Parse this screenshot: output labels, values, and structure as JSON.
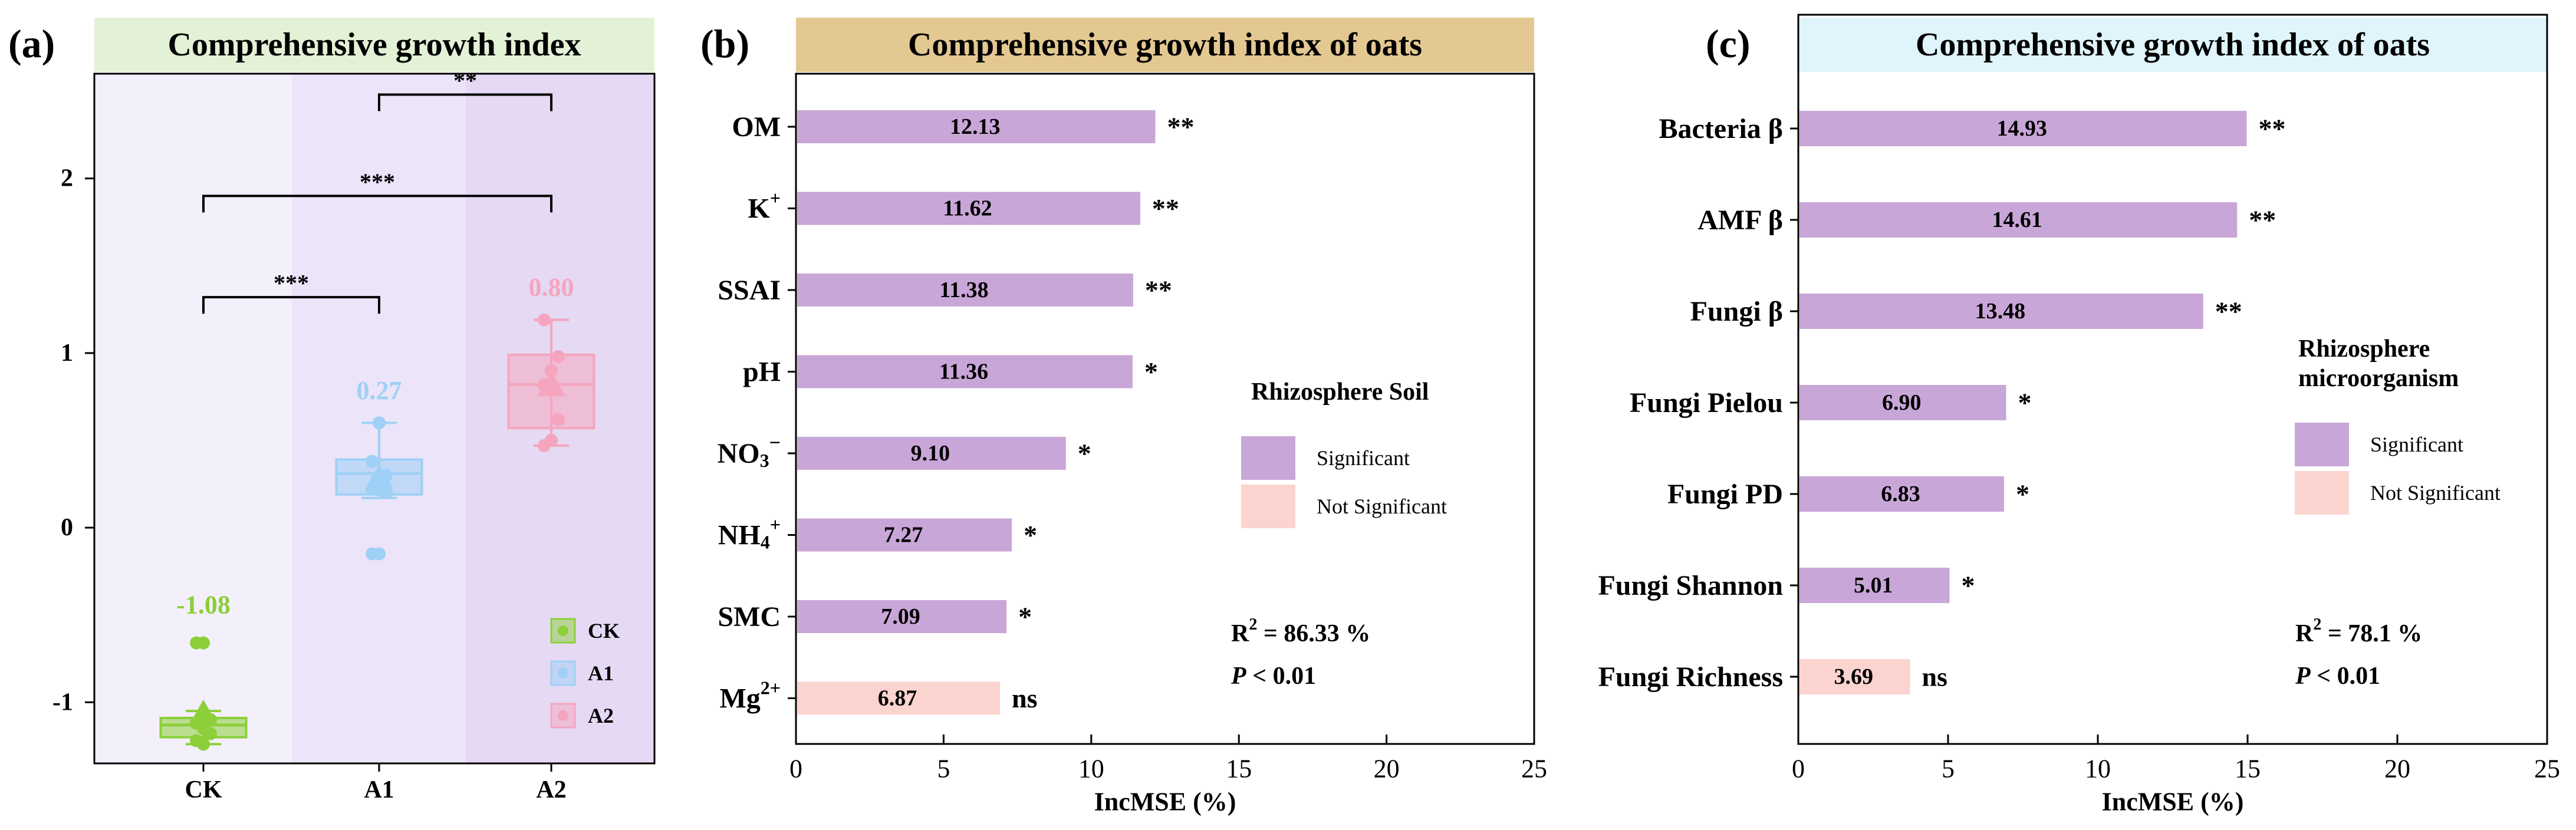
{
  "chart_data": [
    {
      "panel": "(a)",
      "type": "box",
      "title": "Comprehensive growth index",
      "title_bg": "#e3f1d6",
      "categories": [
        "CK",
        "A1",
        "A2"
      ],
      "means": [
        -1.08,
        0.27,
        0.8
      ],
      "mean_labels": [
        "-1.08",
        "0.27",
        "0.80"
      ],
      "ylim": [
        -1.35,
        2.6
      ],
      "yticks": [
        -1,
        0,
        1,
        2
      ],
      "ytick_labels": [
        "-1",
        "0",
        "1",
        "2"
      ],
      "groups": [
        {
          "name": "CK",
          "color": "#8ccf3a",
          "q1": -1.2,
          "median": -1.13,
          "q3": -1.09,
          "whisker_low": -1.24,
          "whisker_high": -1.05,
          "points": [
            -0.66,
            -0.66,
            -1.1,
            -1.12,
            -1.15,
            -1.18,
            -1.22,
            -1.24
          ]
        },
        {
          "name": "A1",
          "color": "#9fd0f5",
          "q1": 0.19,
          "median": 0.31,
          "q3": 0.39,
          "whisker_low": 0.17,
          "whisker_high": 0.6,
          "points": [
            -0.15,
            -0.15,
            0.2,
            0.22,
            0.27,
            0.3,
            0.38,
            0.6
          ]
        },
        {
          "name": "A2",
          "color": "#f5a5be",
          "q1": 0.57,
          "median": 0.82,
          "q3": 0.99,
          "whisker_low": 0.47,
          "whisker_high": 1.19,
          "points": [
            0.47,
            0.5,
            0.62,
            0.82,
            0.9,
            0.98,
            1.19
          ]
        }
      ],
      "significance": [
        {
          "from": "A1",
          "to": "A2",
          "label": "**",
          "y": 2.48
        },
        {
          "from": "CK",
          "to": "A2",
          "label": "***",
          "y": 1.9
        },
        {
          "from": "CK",
          "to": "A1",
          "label": "***",
          "y": 1.32
        }
      ],
      "legend": [
        "CK",
        "A1",
        "A2"
      ]
    },
    {
      "panel": "(b)",
      "type": "bar",
      "orientation": "horizontal",
      "title": "Comprehensive growth index of oats",
      "title_bg": "#e3c891",
      "categories": [
        "OM",
        "K",
        "SSAI",
        "pH",
        "NO",
        "NH",
        "SMC",
        "Mg"
      ],
      "category_superscripts": [
        "",
        "+",
        "",
        "",
        "",
        "+",
        "",
        "2+"
      ],
      "category_subscripts": [
        "",
        "",
        "",
        "",
        "3",
        "4",
        "",
        ""
      ],
      "category_tail": [
        "",
        "",
        "",
        "",
        "−",
        "",
        "",
        ""
      ],
      "values": [
        12.13,
        11.62,
        11.38,
        11.36,
        9.1,
        7.27,
        7.09,
        6.87
      ],
      "value_labels": [
        "12.13",
        "11.62",
        "11.38",
        "11.36",
        "9.10",
        "7.27",
        "7.09",
        "6.87"
      ],
      "significance": [
        "**",
        "**",
        "**",
        "*",
        "*",
        "*",
        "*",
        "ns"
      ],
      "significant": [
        true,
        true,
        true,
        true,
        true,
        true,
        true,
        false
      ],
      "xlabel": "IncMSE (%)",
      "xlim": [
        0,
        25
      ],
      "xticks": [
        0,
        5,
        10,
        15,
        20,
        25
      ],
      "xtick_labels": [
        "0",
        "5",
        "10",
        "15",
        "20",
        "25"
      ],
      "legend_title": [
        "Rhizosphere Soil"
      ],
      "legend": [
        "Significant",
        "Not Significant"
      ],
      "r2_prefix": "R",
      "r2_sup": "2",
      "r2_value": " = 86.33 %",
      "p_label": "P",
      "p_value": " < 0.01"
    },
    {
      "panel": "(c)",
      "type": "bar",
      "orientation": "horizontal",
      "title": "Comprehensive growth index of oats",
      "title_bg": "#dff4fb",
      "categories": [
        "Bacteria β",
        "AMF β",
        "Fungi β",
        "Fungi Pielou",
        "Fungi PD",
        "Fungi Shannon",
        "Fungi Richness"
      ],
      "values": [
        14.93,
        14.61,
        13.48,
        6.9,
        6.83,
        5.01,
        3.69
      ],
      "value_labels": [
        "14.93",
        "14.61",
        "13.48",
        "6.90",
        "6.83",
        "5.01",
        "3.69"
      ],
      "significance": [
        "**",
        "**",
        "**",
        "*",
        "*",
        "*",
        "ns"
      ],
      "significant": [
        true,
        true,
        true,
        true,
        true,
        true,
        false
      ],
      "xlabel": "IncMSE (%)",
      "xlim": [
        0,
        25
      ],
      "xticks": [
        0,
        5,
        10,
        15,
        20,
        25
      ],
      "xtick_labels": [
        "0",
        "5",
        "10",
        "15",
        "20",
        "25"
      ],
      "legend_title": [
        "Rhizosphere",
        "microorganism"
      ],
      "legend": [
        "Significant",
        "Not Significant"
      ],
      "r2_prefix": "R",
      "r2_sup": "2",
      "r2_value": " = 78.1 %",
      "p_label": "P",
      "p_value": " < 0.01"
    }
  ],
  "colors": {
    "significant": "#c9a6d8",
    "not_significant": "#fbd3cf",
    "axis": "#000000",
    "bg_ck": "#f3effb",
    "bg_a1": "#ece4f8",
    "bg_a2": "#e5d9f4"
  }
}
